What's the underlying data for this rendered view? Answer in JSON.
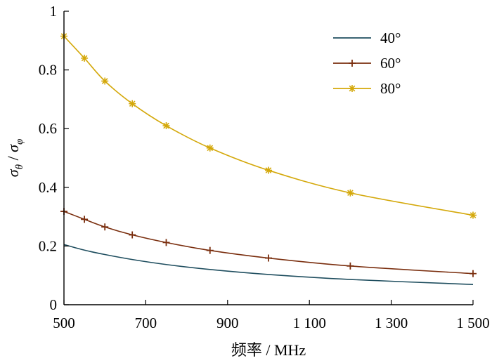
{
  "chart_data": {
    "type": "line",
    "title": "",
    "xlabel": "频率 / MHz",
    "ylabel": "σθ / σφ",
    "xlim": [
      500,
      1500
    ],
    "ylim": [
      0,
      1
    ],
    "xticks": [
      500,
      700,
      900,
      1100,
      1300,
      1500
    ],
    "xtick_labels": [
      "500",
      "700",
      "900",
      "1 100",
      "1 300",
      "1 500"
    ],
    "yticks": [
      0,
      0.2,
      0.4,
      0.6,
      0.8,
      1
    ],
    "ytick_labels": [
      "0",
      "0.2",
      "0.4",
      "0.6",
      "0.8",
      "1"
    ],
    "grid": false,
    "legend_position": "top-right",
    "series": [
      {
        "name": "40°",
        "color": "#1f4e5f",
        "marker": "none",
        "x": [
          500,
          550,
          600,
          667,
          750,
          857,
          1000,
          1200,
          1500
        ],
        "values": [
          0.205,
          0.186,
          0.171,
          0.154,
          0.137,
          0.12,
          0.103,
          0.086,
          0.069
        ]
      },
      {
        "name": "60°",
        "color": "#7a2e0e",
        "marker": "plus",
        "x": [
          500,
          550,
          600,
          667,
          750,
          857,
          1000,
          1200,
          1500
        ],
        "values": [
          0.318,
          0.291,
          0.265,
          0.238,
          0.212,
          0.185,
          0.159,
          0.132,
          0.106
        ]
      },
      {
        "name": "80°",
        "color": "#d4a80a",
        "marker": "star",
        "x": [
          500,
          550,
          600,
          667,
          750,
          857,
          1000,
          1200,
          1500
        ],
        "values": [
          0.915,
          0.84,
          0.762,
          0.685,
          0.61,
          0.534,
          0.458,
          0.381,
          0.305
        ]
      }
    ]
  }
}
